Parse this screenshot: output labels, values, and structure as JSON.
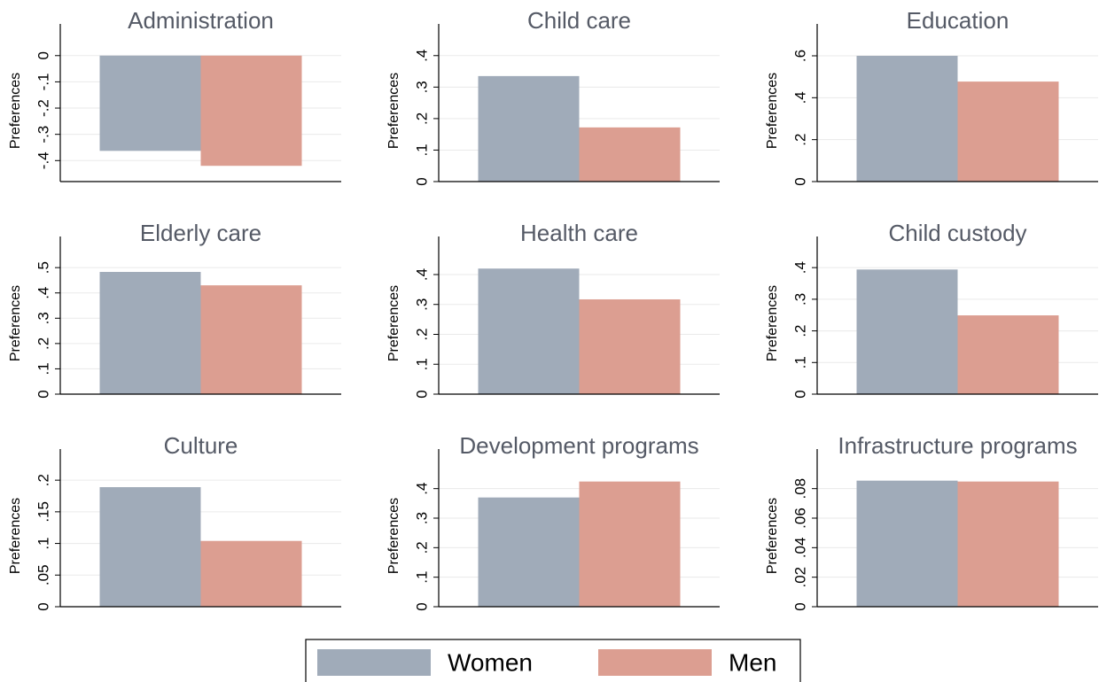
{
  "chart_data": [
    {
      "type": "bar",
      "title": "Administration",
      "ylabel": "Preferences",
      "ylim": [
        -0.48,
        0.06
      ],
      "yticks": [
        {
          "value": -0.4,
          "label": "-.4"
        },
        {
          "value": -0.3,
          "label": "-.3"
        },
        {
          "value": -0.2,
          "label": "-.2"
        },
        {
          "value": -0.1,
          "label": "-.1"
        },
        0
      ],
      "series": [
        {
          "name": "Women",
          "color": "#a0abb9",
          "values": [
            -0.363
          ]
        },
        {
          "name": "Men",
          "color": "#dc9e91",
          "values": [
            -0.42
          ]
        }
      ],
      "grid": true
    },
    {
      "type": "bar",
      "title": "Child care",
      "ylabel": "Preferences",
      "ylim": [
        0,
        0.45
      ],
      "yticks": [
        0,
        {
          "value": 0.1,
          "label": ".1"
        },
        {
          "value": 0.2,
          "label": ".2"
        },
        {
          "value": 0.3,
          "label": ".3"
        },
        {
          "value": 0.4,
          "label": ".4"
        }
      ],
      "series": [
        {
          "name": "Women",
          "color": "#a0abb9",
          "values": [
            0.335
          ]
        },
        {
          "name": "Men",
          "color": "#dc9e91",
          "values": [
            0.172
          ]
        }
      ],
      "grid": true
    },
    {
      "type": "bar",
      "title": "Education",
      "ylabel": "Preferences",
      "ylim": [
        0,
        0.676
      ],
      "yticks": [
        0,
        {
          "value": 0.2,
          "label": ".2"
        },
        {
          "value": 0.4,
          "label": ".4"
        },
        {
          "value": 0.6,
          "label": ".6"
        }
      ],
      "series": [
        {
          "name": "Women",
          "color": "#a0abb9",
          "values": [
            0.6
          ]
        },
        {
          "name": "Men",
          "color": "#dc9e91",
          "values": [
            0.477
          ]
        }
      ],
      "grid": true
    },
    {
      "type": "bar",
      "title": "Elderly care",
      "ylabel": "Preferences",
      "ylim": [
        0,
        0.56
      ],
      "yticks": [
        0,
        {
          "value": 0.1,
          "label": ".1"
        },
        {
          "value": 0.2,
          "label": ".2"
        },
        {
          "value": 0.3,
          "label": ".3"
        },
        {
          "value": 0.4,
          "label": ".4"
        },
        {
          "value": 0.5,
          "label": ".5"
        }
      ],
      "series": [
        {
          "name": "Women",
          "color": "#a0abb9",
          "values": [
            0.483
          ]
        },
        {
          "name": "Men",
          "color": "#dc9e91",
          "values": [
            0.43
          ]
        }
      ],
      "grid": true
    },
    {
      "type": "bar",
      "title": "Health care",
      "ylabel": "Preferences",
      "ylim": [
        0,
        0.474
      ],
      "yticks": [
        0,
        {
          "value": 0.1,
          "label": ".1"
        },
        {
          "value": 0.2,
          "label": ".2"
        },
        {
          "value": 0.3,
          "label": ".3"
        },
        {
          "value": 0.4,
          "label": ".4"
        }
      ],
      "series": [
        {
          "name": "Women",
          "color": "#a0abb9",
          "values": [
            0.42
          ]
        },
        {
          "name": "Men",
          "color": "#dc9e91",
          "values": [
            0.317
          ]
        }
      ],
      "grid": true
    },
    {
      "type": "bar",
      "title": "Child custody",
      "ylabel": "Preferences",
      "ylim": [
        0,
        0.448
      ],
      "yticks": [
        0,
        {
          "value": 0.1,
          "label": ".1"
        },
        {
          "value": 0.2,
          "label": ".2"
        },
        {
          "value": 0.3,
          "label": ".3"
        },
        {
          "value": 0.4,
          "label": ".4"
        }
      ],
      "series": [
        {
          "name": "Women",
          "color": "#a0abb9",
          "values": [
            0.394
          ]
        },
        {
          "name": "Men",
          "color": "#dc9e91",
          "values": [
            0.249
          ]
        }
      ],
      "grid": true
    },
    {
      "type": "bar",
      "title": "Culture",
      "ylabel": "Preferences",
      "ylim": [
        0,
        0.224
      ],
      "yticks": [
        0,
        {
          "value": 0.05,
          "label": ".05"
        },
        {
          "value": 0.1,
          "label": ".1"
        },
        {
          "value": 0.15,
          "label": ".15"
        },
        {
          "value": 0.2,
          "label": ".2"
        }
      ],
      "series": [
        {
          "name": "Women",
          "color": "#a0abb9",
          "values": [
            0.189
          ]
        },
        {
          "name": "Men",
          "color": "#dc9e91",
          "values": [
            0.104
          ]
        }
      ],
      "grid": true
    },
    {
      "type": "bar",
      "title": "Development programs",
      "ylabel": "Preferences",
      "ylim": [
        0,
        0.48
      ],
      "yticks": [
        0,
        {
          "value": 0.1,
          "label": ".1"
        },
        {
          "value": 0.2,
          "label": ".2"
        },
        {
          "value": 0.3,
          "label": ".3"
        },
        {
          "value": 0.4,
          "label": ".4"
        }
      ],
      "series": [
        {
          "name": "Women",
          "color": "#a0abb9",
          "values": [
            0.37
          ]
        },
        {
          "name": "Men",
          "color": "#dc9e91",
          "values": [
            0.424
          ]
        }
      ],
      "grid": true
    },
    {
      "type": "bar",
      "title": "Infrastructure programs",
      "ylabel": "Preferences",
      "ylim": [
        0,
        0.096
      ],
      "yticks": [
        0,
        {
          "value": 0.02,
          "label": ".02"
        },
        {
          "value": 0.04,
          "label": ".04"
        },
        {
          "value": 0.06,
          "label": ".06"
        },
        {
          "value": 0.08,
          "label": ".08"
        }
      ],
      "series": [
        {
          "name": "Women",
          "color": "#a0abb9",
          "values": [
            0.0854
          ]
        },
        {
          "name": "Men",
          "color": "#dc9e91",
          "values": [
            0.0848
          ]
        }
      ],
      "grid": true
    }
  ]
}
